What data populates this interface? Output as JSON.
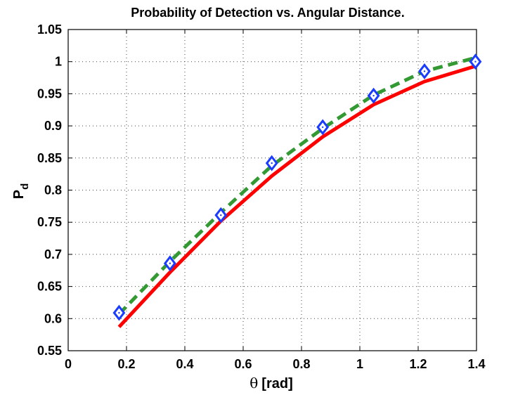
{
  "chart_data": {
    "type": "line",
    "title": "Probability of Detection vs. Angular Distance.",
    "xlabel": {
      "symbol": "θ",
      "unit": "[rad]"
    },
    "ylabel": {
      "main": "P",
      "subscript": "d"
    },
    "xlim": [
      0,
      1.4
    ],
    "ylim": [
      0.55,
      1.05
    ],
    "xticks": [
      0,
      0.2,
      0.4,
      0.6,
      0.8,
      1,
      1.2,
      1.4
    ],
    "xtick_labels": [
      "0",
      "0.2",
      "0.4",
      "0.6",
      "0.8",
      "1",
      "1.2",
      "1.4"
    ],
    "yticks": [
      0.55,
      0.6,
      0.65,
      0.7,
      0.75,
      0.8,
      0.85,
      0.9,
      0.95,
      1,
      1.05
    ],
    "ytick_labels": [
      "0.55",
      "0.6",
      "0.65",
      "0.7",
      "0.75",
      "0.8",
      "0.85",
      "0.9",
      "0.95",
      "1",
      "1.05"
    ],
    "grid": true,
    "series": [
      {
        "name": "solid-red",
        "style": "solid",
        "color": "#ff0000",
        "marker": "none",
        "x": [
          0.1745,
          0.349,
          0.5236,
          0.6981,
          0.8727,
          1.0472,
          1.2217,
          1.3963
        ],
        "y": [
          0.587,
          0.672,
          0.752,
          0.822,
          0.883,
          0.933,
          0.969,
          0.993
        ]
      },
      {
        "name": "dashed-green",
        "style": "dashed",
        "color": "#339933",
        "marker": "none",
        "x": [
          0.1745,
          0.349,
          0.5236,
          0.6981,
          0.8727,
          1.0472,
          1.2217,
          1.3963
        ],
        "y": [
          0.607,
          0.689,
          0.765,
          0.838,
          0.896,
          0.948,
          0.985,
          1.006
        ]
      },
      {
        "name": "blue-diamonds",
        "style": "none",
        "color": "#1a3cff",
        "marker": "diamond",
        "x": [
          0.1745,
          0.349,
          0.5236,
          0.6981,
          0.8727,
          1.0472,
          1.2217,
          1.3963
        ],
        "y": [
          0.609,
          0.686,
          0.761,
          0.842,
          0.898,
          0.947,
          0.985,
          1.0
        ]
      }
    ]
  }
}
